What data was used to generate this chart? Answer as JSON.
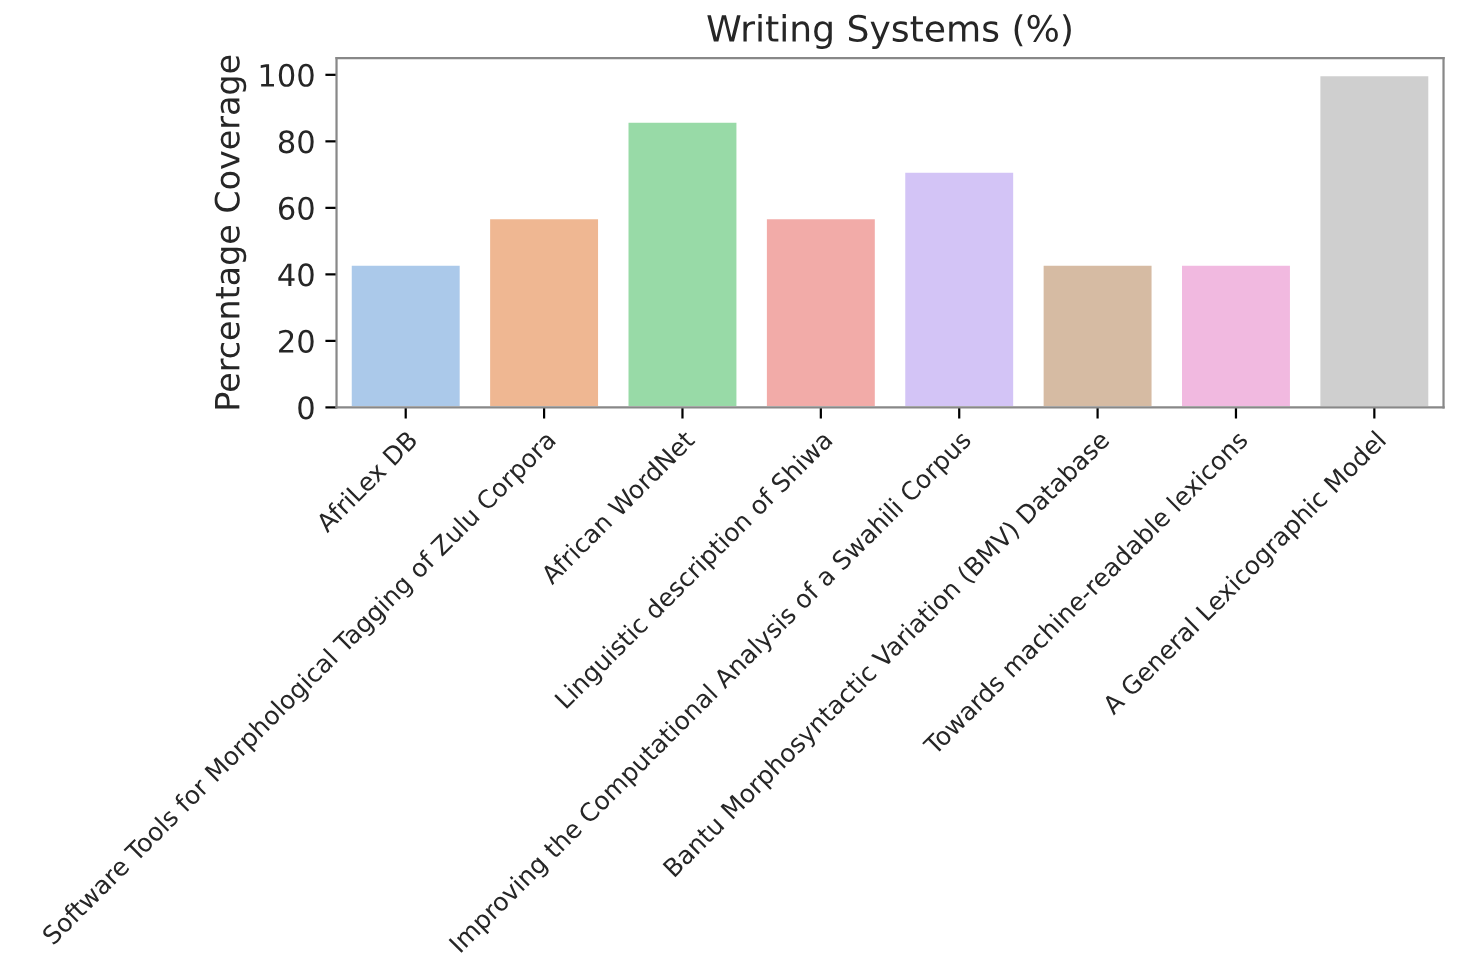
{
  "chart_data": {
    "type": "bar",
    "title": "Writing Systems (%)",
    "ylabel": "Percentage Coverage",
    "categories": [
      "AfriLex DB",
      "Software Tools for Morphological Tagging of Zulu Corpora",
      "African WordNet",
      "Linguistic description of Shiwa",
      "Improving the Computational Analysis of a Swahili Corpus",
      "Bantu Morphosyntactic Variation (BMV) Database",
      "Towards machine-readable lexicons",
      "A General Lexicographic Model"
    ],
    "values": [
      43,
      57,
      86,
      57,
      71,
      43,
      43,
      100
    ],
    "colors": [
      "#a1c9f4",
      "#ffb482",
      "#8de5a1",
      "#ff9f9b",
      "#d0bbff",
      "#debb9b",
      "#fab0e4",
      "#cfcfcf"
    ],
    "ylim": [
      0,
      105
    ],
    "yticks": [
      0,
      20,
      40,
      60,
      80,
      100
    ],
    "grid": false,
    "legend": false
  }
}
